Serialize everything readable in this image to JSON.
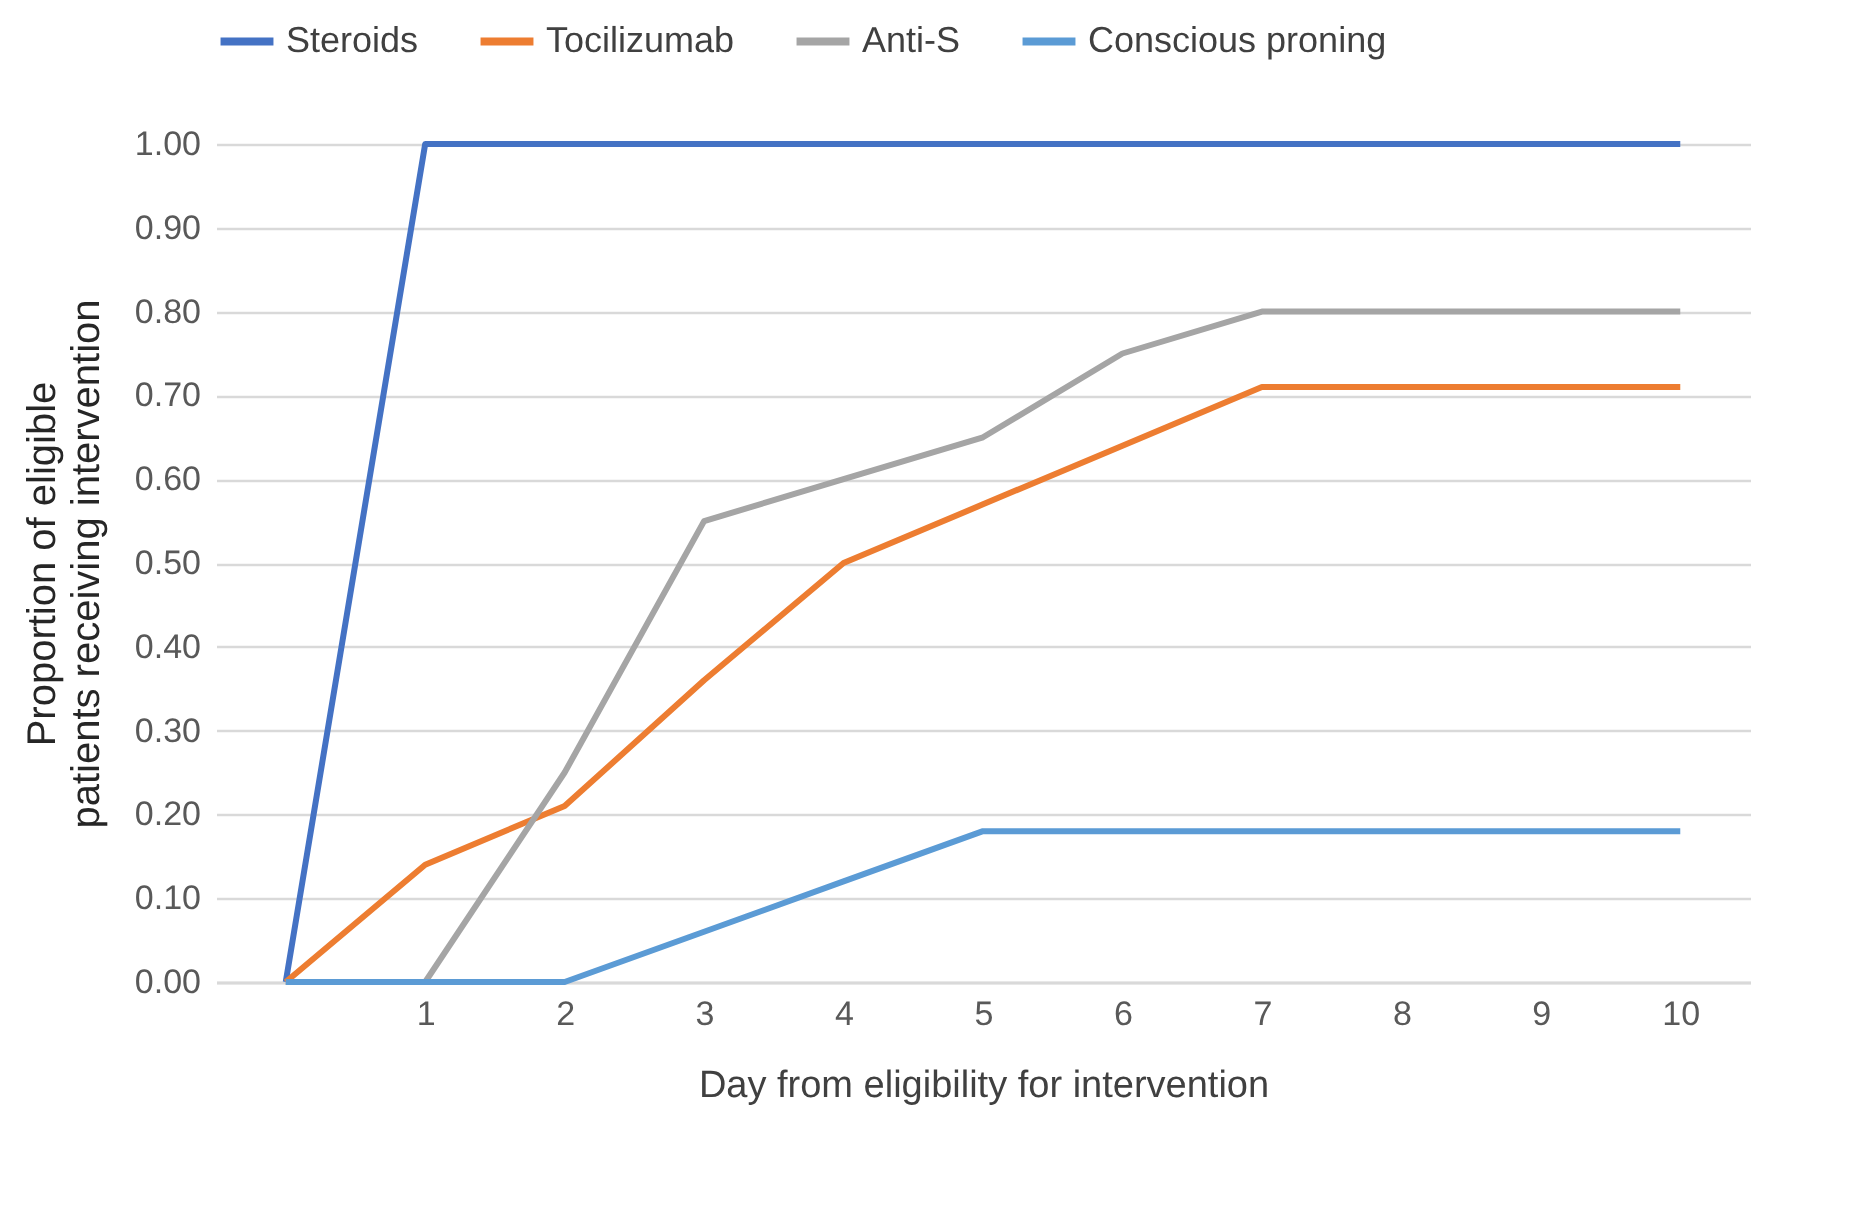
{
  "chart_data": {
    "type": "line",
    "xlabel": "Day from eligibility for intervention",
    "ylabel": "Proportion of eligible patients receiving intervention",
    "categories": [
      null,
      "1",
      "2",
      "3",
      "4",
      "5",
      "6",
      "7",
      "8",
      "9",
      "10"
    ],
    "series": [
      {
        "name": "Steroids",
        "color": "#4472c4",
        "values": [
          0,
          1,
          1,
          1,
          1,
          1,
          1,
          1,
          1,
          1,
          1
        ]
      },
      {
        "name": "Tocilizumab",
        "color": "#ed7d31",
        "values": [
          0,
          0.14,
          0.21,
          0.36,
          0.5,
          0.57,
          0.64,
          0.71,
          0.71,
          0.71,
          0.71
        ]
      },
      {
        "name": "Anti-S",
        "color": "#a5a5a5",
        "values": [
          0,
          0,
          0.25,
          0.55,
          0.6,
          0.65,
          0.75,
          0.8,
          0.8,
          0.8,
          0.8
        ]
      },
      {
        "name": "Conscious proning",
        "color": "#5b9bd5",
        "values": [
          0,
          0,
          0,
          0.06,
          0.12,
          0.18,
          0.18,
          0.18,
          0.18,
          0.18,
          0.18
        ]
      }
    ],
    "ylim": [
      0,
      1
    ],
    "yticks": [
      {
        "value": 0,
        "label": "0.00"
      },
      {
        "value": 0.1,
        "label": "0.10"
      },
      {
        "value": 0.2,
        "label": "0.20"
      },
      {
        "value": 0.3,
        "label": "0.30"
      },
      {
        "value": 0.4,
        "label": "0.40"
      },
      {
        "value": 0.5,
        "label": "0.50"
      },
      {
        "value": 0.6,
        "label": "0.60"
      },
      {
        "value": 0.7,
        "label": "0.70"
      },
      {
        "value": 0.8,
        "label": "0.80"
      },
      {
        "value": 0.9,
        "label": "0.90"
      },
      {
        "value": 1,
        "label": "1.00"
      }
    ],
    "grid": "y",
    "legend": "top",
    "marker": "none",
    "line_style": "solid"
  }
}
